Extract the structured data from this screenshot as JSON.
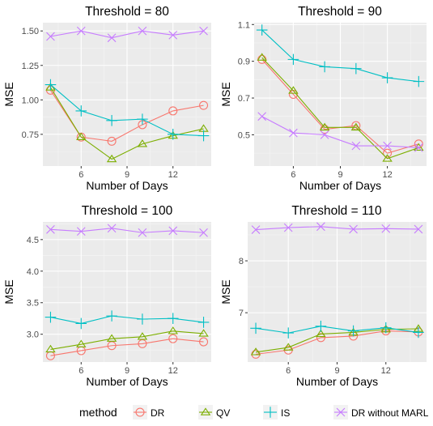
{
  "legend": {
    "title": "method",
    "entries": [
      {
        "label": "DR",
        "color": "#F8766D",
        "shape": "circle"
      },
      {
        "label": "QV",
        "color": "#7CAE00",
        "shape": "triangle"
      },
      {
        "label": "IS",
        "color": "#00BFC4",
        "shape": "plus"
      },
      {
        "label": "DR without MARL",
        "color": "#C77CFF",
        "shape": "cross"
      }
    ]
  },
  "chart_data": [
    {
      "type": "line",
      "title": "Threshold = 80",
      "xlabel": "Number of Days",
      "ylabel": "MSE",
      "x": [
        4,
        6,
        8,
        10,
        12,
        14
      ],
      "xlim": [
        3.5,
        14.5
      ],
      "xticks": [
        6,
        9,
        12
      ],
      "ylim": [
        0.52,
        1.56
      ],
      "yticks": [
        0.75,
        1.0,
        1.25,
        1.5
      ],
      "ytick_labels": [
        "0.75",
        "1.00",
        "1.25",
        "1.50"
      ],
      "grid": true,
      "series": [
        {
          "name": "DR",
          "values": [
            1.07,
            0.73,
            0.7,
            0.82,
            0.92,
            0.96
          ]
        },
        {
          "name": "QV",
          "values": [
            1.09,
            0.73,
            0.57,
            0.68,
            0.74,
            0.79
          ]
        },
        {
          "name": "IS",
          "values": [
            1.11,
            0.92,
            0.85,
            0.86,
            0.75,
            0.74
          ]
        },
        {
          "name": "DR without MARL",
          "values": [
            1.46,
            1.5,
            1.45,
            1.5,
            1.47,
            1.5
          ]
        }
      ]
    },
    {
      "type": "line",
      "title": "Threshold = 90",
      "xlabel": "Number of Days",
      "ylabel": "MSE",
      "x": [
        4,
        6,
        8,
        10,
        12,
        14
      ],
      "xlim": [
        3.5,
        14.5
      ],
      "xticks": [
        6,
        9,
        12
      ],
      "ylim": [
        0.33,
        1.11
      ],
      "yticks": [
        0.5,
        0.7,
        0.9,
        1.1
      ],
      "ytick_labels": [
        "0.5",
        "0.7",
        "0.9",
        "1.1"
      ],
      "grid": true,
      "series": [
        {
          "name": "DR",
          "values": [
            0.91,
            0.72,
            0.53,
            0.55,
            0.4,
            0.45
          ]
        },
        {
          "name": "QV",
          "values": [
            0.92,
            0.74,
            0.54,
            0.54,
            0.37,
            0.43
          ]
        },
        {
          "name": "IS",
          "values": [
            1.07,
            0.91,
            0.87,
            0.86,
            0.81,
            0.79
          ]
        },
        {
          "name": "DR without MARL",
          "values": [
            0.6,
            0.51,
            0.5,
            0.44,
            0.44,
            0.43
          ]
        }
      ]
    },
    {
      "type": "line",
      "title": "Threshold = 100",
      "xlabel": "Number of Days",
      "ylabel": "MSE",
      "x": [
        4,
        6,
        8,
        10,
        12,
        14
      ],
      "xlim": [
        3.5,
        14.5
      ],
      "xticks": [
        6,
        9,
        12
      ],
      "ylim": [
        2.56,
        4.78
      ],
      "yticks": [
        3.0,
        3.5,
        4.0,
        4.5
      ],
      "ytick_labels": [
        "3.0",
        "3.5",
        "4.0",
        "4.5"
      ],
      "grid": true,
      "series": [
        {
          "name": "DR",
          "values": [
            2.66,
            2.74,
            2.82,
            2.85,
            2.93,
            2.88
          ]
        },
        {
          "name": "QV",
          "values": [
            2.76,
            2.84,
            2.93,
            2.96,
            3.05,
            3.01
          ]
        },
        {
          "name": "IS",
          "values": [
            3.27,
            3.17,
            3.29,
            3.24,
            3.25,
            3.19
          ]
        },
        {
          "name": "DR without MARL",
          "values": [
            4.66,
            4.63,
            4.68,
            4.61,
            4.64,
            4.61
          ]
        }
      ]
    },
    {
      "type": "line",
      "title": "Threshold = 110",
      "xlabel": "Number of Days",
      "ylabel": "MSE",
      "x": [
        4,
        6,
        8,
        10,
        12,
        14
      ],
      "xlim": [
        3.5,
        14.5
      ],
      "xticks": [
        6,
        9,
        12
      ],
      "ylim": [
        6.05,
        8.75
      ],
      "yticks": [
        7,
        8
      ],
      "ytick_labels": [
        "7",
        "8"
      ],
      "grid": true,
      "series": [
        {
          "name": "DR",
          "values": [
            6.2,
            6.28,
            6.52,
            6.55,
            6.65,
            6.63
          ]
        },
        {
          "name": "QV",
          "values": [
            6.24,
            6.33,
            6.59,
            6.62,
            6.68,
            6.69
          ]
        },
        {
          "name": "IS",
          "values": [
            6.7,
            6.61,
            6.74,
            6.65,
            6.71,
            6.62
          ]
        },
        {
          "name": "DR without MARL",
          "values": [
            8.6,
            8.64,
            8.66,
            8.61,
            8.62,
            8.61
          ]
        }
      ]
    }
  ]
}
